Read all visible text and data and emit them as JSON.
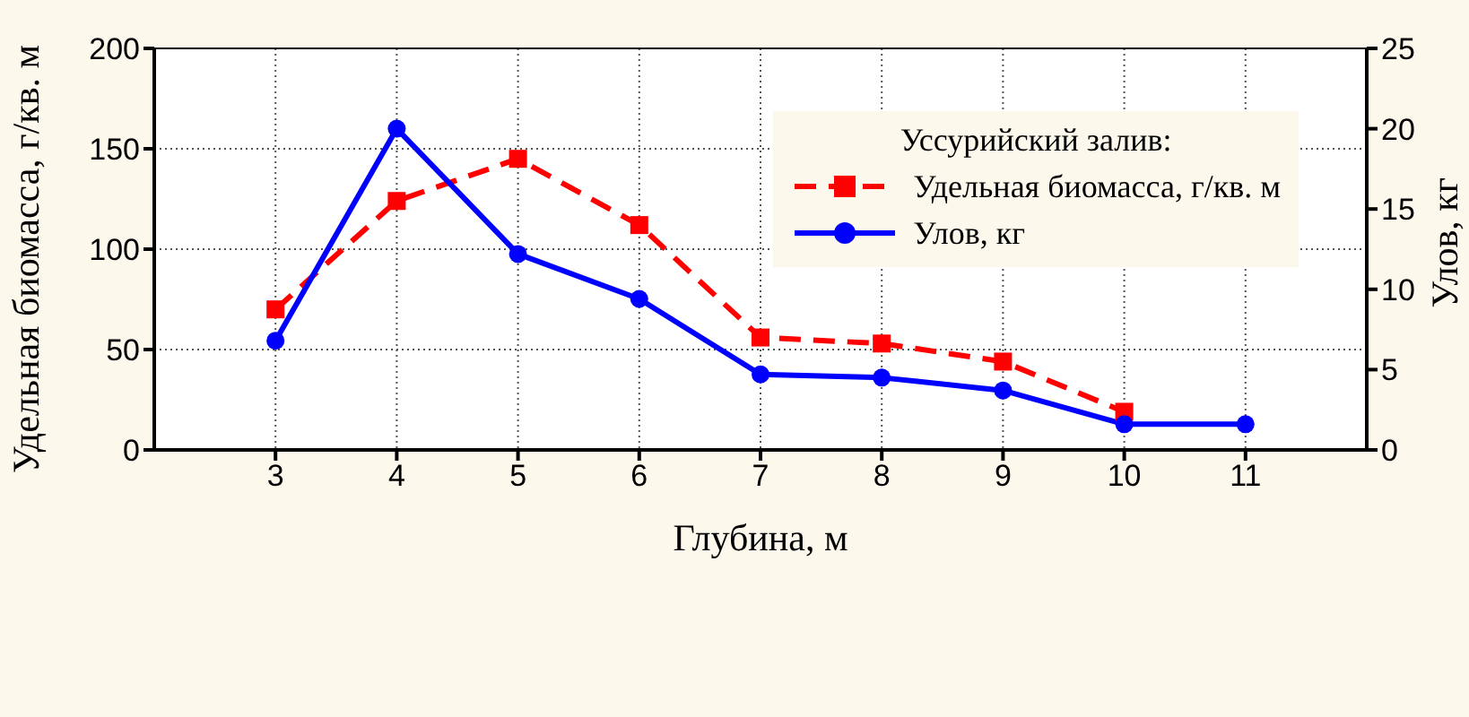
{
  "chart_data": {
    "type": "line",
    "xlabel": "Глубина, м",
    "ylabel": "Удельная биомасса, г/кв. м",
    "y2label": "Улов, кг",
    "legend_title": "Уссурийский залив:",
    "x": [
      3,
      4,
      5,
      6,
      7,
      8,
      9,
      10,
      11
    ],
    "series": [
      {
        "name": "Удельная биомасса, г/кв. м",
        "color": "#ff0000",
        "marker": "square",
        "line_style": "dashed",
        "values": [
          70,
          124,
          145,
          112,
          56,
          53,
          44,
          19,
          null
        ]
      },
      {
        "name": "Улов, кг",
        "color": "#0000ff",
        "marker": "circle",
        "line_style": "solid",
        "axis": "y2",
        "values": [
          6.8,
          20,
          12.2,
          9.4,
          4.7,
          4.5,
          3.7,
          1.6,
          1.6
        ]
      }
    ],
    "xlim": [
      2,
      12
    ],
    "xticks": [
      3,
      4,
      5,
      6,
      7,
      8,
      9,
      10,
      11
    ],
    "ylim": [
      0,
      200
    ],
    "yticks": [
      0,
      50,
      100,
      150,
      200
    ],
    "y2lim": [
      0,
      25
    ],
    "y2ticks": [
      0,
      5,
      10,
      15,
      20,
      25
    ],
    "grid": true,
    "legend": "top right"
  }
}
